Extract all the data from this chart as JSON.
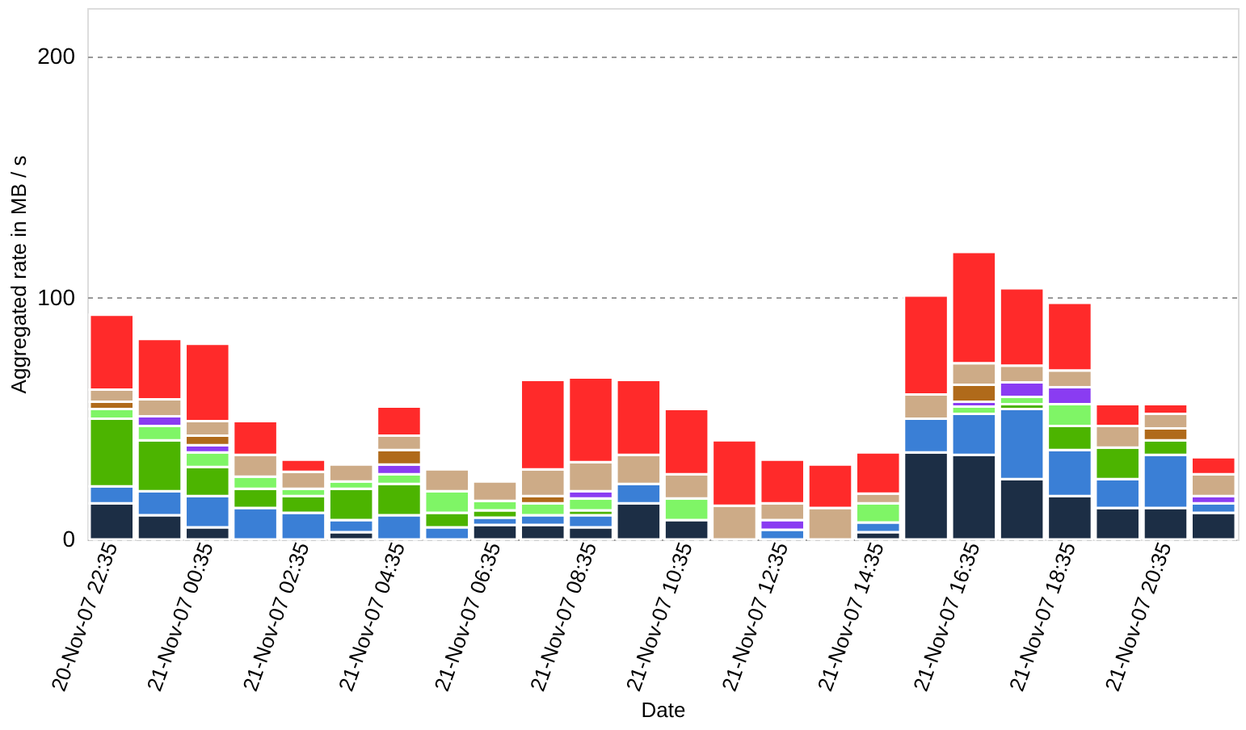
{
  "chart_data": {
    "type": "bar",
    "stacked": true,
    "xlabel": "Date",
    "ylabel": "Aggregated rate in MB / s",
    "categories": [
      "20-Nov-07 22:35",
      null,
      "21-Nov-07 00:35",
      null,
      "21-Nov-07 02:35",
      null,
      "21-Nov-07 04:35",
      null,
      "21-Nov-07 06:35",
      null,
      "21-Nov-07 08:35",
      null,
      "21-Nov-07 10:35",
      null,
      "21-Nov-07 12:35",
      null,
      "21-Nov-07 14:35",
      null,
      "21-Nov-07 16:35",
      null,
      "21-Nov-07 18:35",
      null,
      "21-Nov-07 20:35",
      null
    ],
    "series": [
      {
        "color": "#1c2e45",
        "values": [
          15,
          10,
          5,
          null,
          null,
          3,
          null,
          null,
          6,
          6,
          5,
          15,
          8,
          null,
          null,
          null,
          3,
          36,
          35,
          25,
          18,
          13,
          13,
          11
        ]
      },
      {
        "color": "#3a7fd6",
        "values": [
          7,
          10,
          13,
          13,
          11,
          5,
          10,
          5,
          3,
          4,
          5,
          8,
          null,
          null,
          4,
          null,
          4,
          14,
          17,
          29,
          19,
          12,
          22,
          4
        ]
      },
      {
        "color": "#4cb400",
        "values": [
          28,
          21,
          12,
          8,
          7,
          13,
          13,
          6,
          3,
          null,
          2,
          null,
          null,
          null,
          null,
          null,
          null,
          null,
          null,
          2,
          10,
          13,
          6,
          null
        ]
      },
      {
        "color": "#7ff566",
        "values": [
          4,
          6,
          6,
          5,
          3,
          3,
          4,
          9,
          4,
          5,
          5,
          null,
          9,
          null,
          null,
          null,
          8,
          null,
          3,
          3,
          9,
          null,
          null,
          null
        ]
      },
      {
        "color": "#8a3cf2",
        "values": [
          null,
          4,
          3,
          null,
          null,
          null,
          4,
          null,
          null,
          null,
          3,
          null,
          null,
          null,
          4,
          null,
          null,
          null,
          2,
          6,
          7,
          null,
          null,
          3
        ]
      },
      {
        "color": "#b06a1a",
        "values": [
          3,
          null,
          4,
          null,
          null,
          null,
          6,
          null,
          null,
          3,
          null,
          null,
          null,
          null,
          null,
          null,
          null,
          null,
          7,
          null,
          null,
          null,
          5,
          null
        ]
      },
      {
        "color": "#cdab87",
        "values": [
          5,
          7,
          6,
          9,
          7,
          7,
          6,
          9,
          8,
          11,
          12,
          12,
          10,
          14,
          7,
          13,
          4,
          10,
          9,
          7,
          7,
          9,
          6,
          9
        ]
      },
      {
        "color": "#ff2a2a",
        "values": [
          31,
          25,
          32,
          14,
          5,
          null,
          12,
          null,
          null,
          37,
          35,
          31,
          27,
          27,
          18,
          18,
          17,
          41,
          46,
          32,
          28,
          9,
          4,
          7
        ]
      }
    ],
    "ylim": [
      0,
      220
    ],
    "yticks": [
      0,
      100,
      200
    ],
    "grid": "y",
    "legend": false
  }
}
